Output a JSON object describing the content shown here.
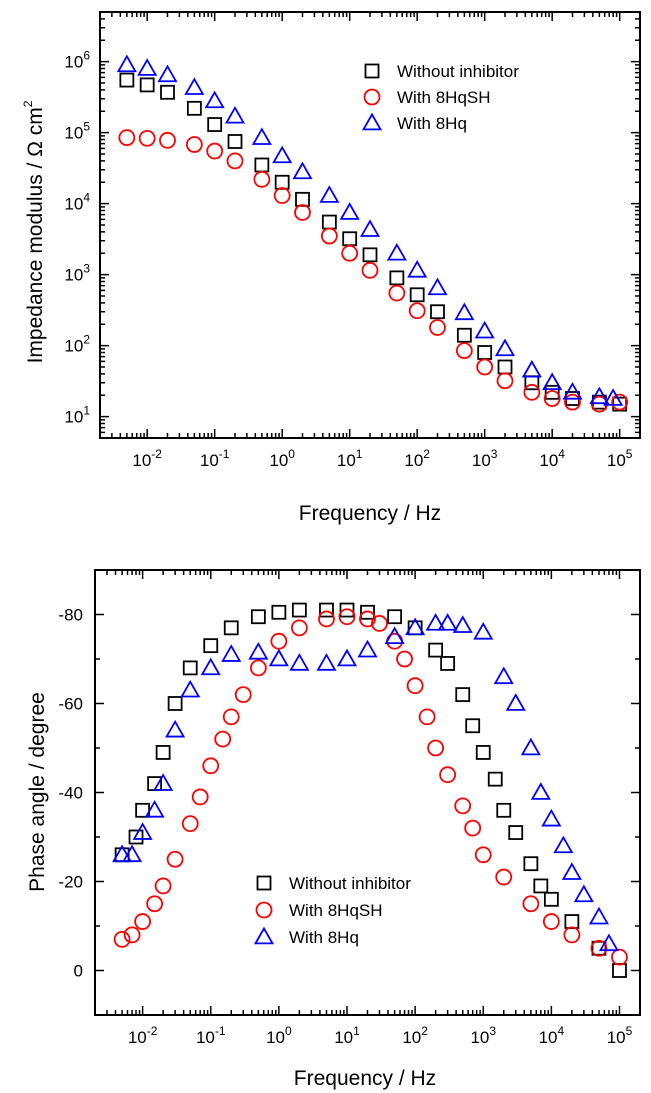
{
  "chart_data": [
    {
      "type": "scatter",
      "panel": "top",
      "xlabel": "Frequency / Hz",
      "ylabel": "Impedance modulus / Ω cm",
      "ylabel_sup": "2",
      "x_scale": "log",
      "y_scale": "log",
      "xlim": [
        0.002,
        200000
      ],
      "ylim": [
        5,
        5000000
      ],
      "x_ticks": [
        {
          "value": 0.01,
          "base": "10",
          "exp": "-2"
        },
        {
          "value": 0.1,
          "base": "10",
          "exp": "-1"
        },
        {
          "value": 1,
          "base": "10",
          "exp": "0"
        },
        {
          "value": 10,
          "base": "10",
          "exp": "1"
        },
        {
          "value": 100,
          "base": "10",
          "exp": "2"
        },
        {
          "value": 1000,
          "base": "10",
          "exp": "3"
        },
        {
          "value": 10000,
          "base": "10",
          "exp": "4"
        },
        {
          "value": 100000,
          "base": "10",
          "exp": "5"
        }
      ],
      "y_ticks": [
        {
          "value": 10,
          "base": "10",
          "exp": "1"
        },
        {
          "value": 100,
          "base": "10",
          "exp": "2"
        },
        {
          "value": 1000,
          "base": "10",
          "exp": "3"
        },
        {
          "value": 10000,
          "base": "10",
          "exp": "4"
        },
        {
          "value": 100000,
          "base": "10",
          "exp": "5"
        },
        {
          "value": 1000000,
          "base": "10",
          "exp": "6"
        }
      ],
      "legend_position": "top-right",
      "series": [
        {
          "name": "Without inhibitor",
          "marker": "square",
          "color": "#000000",
          "x": [
            0.005,
            0.01,
            0.02,
            0.05,
            0.1,
            0.2,
            0.5,
            1,
            2,
            5,
            10,
            20,
            50,
            100,
            200,
            500,
            1000,
            2000,
            5000,
            10000,
            20000,
            50000,
            100000
          ],
          "y": [
            550000,
            470000,
            370000,
            220000,
            130000,
            75000,
            35000,
            20000,
            11500,
            5500,
            3200,
            1900,
            900,
            520,
            300,
            140,
            80,
            50,
            30,
            22,
            18,
            16,
            15
          ]
        },
        {
          "name": "With 8HqSH",
          "marker": "circle",
          "color": "#ff0000",
          "x": [
            0.005,
            0.01,
            0.02,
            0.05,
            0.1,
            0.2,
            0.5,
            1,
            2,
            5,
            10,
            20,
            50,
            100,
            200,
            500,
            1000,
            2000,
            5000,
            10000,
            20000,
            50000,
            100000
          ],
          "y": [
            85000,
            83000,
            78000,
            68000,
            55000,
            40000,
            22000,
            13000,
            7500,
            3500,
            2000,
            1150,
            550,
            310,
            180,
            85,
            50,
            32,
            22,
            18,
            16,
            15,
            16
          ]
        },
        {
          "name": "With 8Hq",
          "marker": "triangle",
          "color": "#0000ff",
          "x": [
            0.005,
            0.01,
            0.02,
            0.05,
            0.1,
            0.2,
            0.5,
            1,
            2,
            5,
            10,
            20,
            50,
            100,
            200,
            500,
            1000,
            2000,
            5000,
            10000,
            20000,
            50000,
            80000
          ],
          "y": [
            900000,
            800000,
            650000,
            430000,
            280000,
            170000,
            85000,
            47000,
            28000,
            13000,
            7500,
            4300,
            2000,
            1150,
            650,
            290,
            160,
            90,
            45,
            30,
            22,
            19,
            18
          ]
        }
      ]
    },
    {
      "type": "scatter",
      "panel": "bottom",
      "xlabel": "Frequency / Hz",
      "ylabel": "Phase angle / degree",
      "x_scale": "log",
      "y_scale": "linear",
      "y_inverted": true,
      "xlim": [
        0.002,
        200000
      ],
      "ylim": [
        10,
        -90
      ],
      "x_ticks": [
        {
          "value": 0.01,
          "base": "10",
          "exp": "-2"
        },
        {
          "value": 0.1,
          "base": "10",
          "exp": "-1"
        },
        {
          "value": 1,
          "base": "10",
          "exp": "0"
        },
        {
          "value": 10,
          "base": "10",
          "exp": "1"
        },
        {
          "value": 100,
          "base": "10",
          "exp": "2"
        },
        {
          "value": 1000,
          "base": "10",
          "exp": "3"
        },
        {
          "value": 10000,
          "base": "10",
          "exp": "4"
        },
        {
          "value": 100000,
          "base": "10",
          "exp": "5"
        }
      ],
      "y_ticks": [
        {
          "value": 0,
          "label": "0"
        },
        {
          "value": -20,
          "label": "-20"
        },
        {
          "value": -40,
          "label": "-40"
        },
        {
          "value": -60,
          "label": "-60"
        },
        {
          "value": -80,
          "label": "-80"
        }
      ],
      "legend_position": "bottom-center",
      "series": [
        {
          "name": "Without inhibitor",
          "marker": "square",
          "color": "#000000",
          "x": [
            0.005,
            0.008,
            0.01,
            0.015,
            0.02,
            0.03,
            0.05,
            0.1,
            0.2,
            0.5,
            1,
            2,
            5,
            10,
            20,
            50,
            100,
            200,
            300,
            500,
            700,
            1000,
            1500,
            2000,
            3000,
            5000,
            7000,
            10000,
            20000,
            50000,
            100000
          ],
          "y": [
            -26,
            -30,
            -36,
            -42,
            -49,
            -60,
            -68,
            -73,
            -77,
            -79.5,
            -80.5,
            -81,
            -81,
            -81,
            -80.5,
            -79.5,
            -77,
            -72,
            -69,
            -62,
            -55,
            -49,
            -43,
            -36,
            -31,
            -24,
            -19,
            -16,
            -11,
            -5,
            0
          ]
        },
        {
          "name": "With 8HqSH",
          "marker": "circle",
          "color": "#ff0000",
          "x": [
            0.005,
            0.007,
            0.01,
            0.015,
            0.02,
            0.03,
            0.05,
            0.07,
            0.1,
            0.15,
            0.2,
            0.3,
            0.5,
            1,
            2,
            5,
            10,
            20,
            30,
            50,
            70,
            100,
            150,
            200,
            300,
            500,
            700,
            1000,
            2000,
            5000,
            10000,
            20000,
            50000,
            100000
          ],
          "y": [
            -7,
            -8,
            -11,
            -15,
            -19,
            -25,
            -33,
            -39,
            -46,
            -52,
            -57,
            -62,
            -68,
            -74,
            -77,
            -79,
            -79.5,
            -79,
            -78,
            -74,
            -70,
            -64,
            -57,
            -50,
            -44,
            -37,
            -32,
            -26,
            -21,
            -15,
            -11,
            -8,
            -5,
            -3
          ]
        },
        {
          "name": "With 8Hq",
          "marker": "triangle",
          "color": "#0000ff",
          "x": [
            0.005,
            0.007,
            0.01,
            0.015,
            0.02,
            0.03,
            0.05,
            0.1,
            0.2,
            0.5,
            1,
            2,
            5,
            10,
            20,
            50,
            100,
            200,
            300,
            500,
            1000,
            2000,
            3000,
            5000,
            7000,
            10000,
            15000,
            20000,
            30000,
            50000,
            70000
          ],
          "y": [
            -26,
            -26,
            -31,
            -36,
            -42,
            -54,
            -63,
            -68,
            -71,
            -71.5,
            -70,
            -69,
            -69,
            -70,
            -72,
            -75,
            -77,
            -78,
            -78,
            -77.5,
            -76,
            -66,
            -60,
            -50,
            -40,
            -34,
            -28,
            -22,
            -17,
            -12,
            -6
          ]
        }
      ]
    }
  ]
}
